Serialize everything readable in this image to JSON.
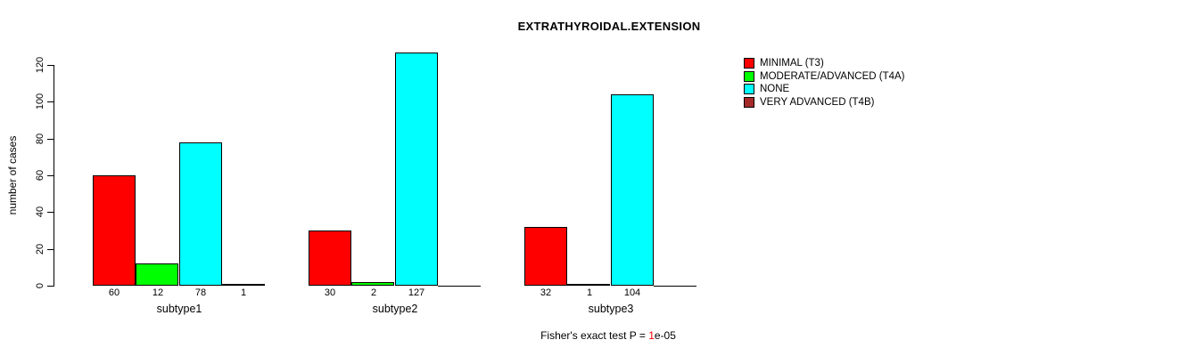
{
  "title": "EXTRATHYROIDAL.EXTENSION",
  "chart_data": {
    "type": "bar",
    "title": "EXTRATHYROIDAL.EXTENSION",
    "xlabel": "",
    "ylabel": "number of cases",
    "ylim": [
      0,
      120
    ],
    "yticks": [
      "0",
      "20",
      "40",
      "60",
      "80",
      "100",
      "120"
    ],
    "grid": false,
    "legend_position": "right",
    "categories": [
      "subtype1",
      "subtype2",
      "subtype3"
    ],
    "series": [
      {
        "name": "MINIMAL (T3)",
        "color": "#FF0000",
        "values": [
          60,
          30,
          32
        ]
      },
      {
        "name": "MODERATE/ADVANCED (T4A)",
        "color": "#00FF00",
        "values": [
          12,
          2,
          1
        ]
      },
      {
        "name": "NONE",
        "color": "#00FFFF",
        "values": [
          78,
          127,
          104
        ]
      },
      {
        "name": "VERY ADVANCED (T4B)",
        "color": "#A52A2A",
        "values": [
          1,
          0,
          0
        ]
      }
    ],
    "bar_value_labels": [
      [
        "60",
        "12",
        "78",
        "1"
      ],
      [
        "30",
        "2",
        "127",
        ""
      ],
      [
        "32",
        "1",
        "104",
        ""
      ]
    ]
  },
  "legend": {
    "items": [
      {
        "label": "MINIMAL (T3)",
        "color": "#FF0000"
      },
      {
        "label": "MODERATE/ADVANCED (T4A)",
        "color": "#00FF00"
      },
      {
        "label": "NONE",
        "color": "#00FFFF"
      },
      {
        "label": "VERY ADVANCED (T4B)",
        "color": "#A52A2A"
      }
    ]
  },
  "caption": {
    "prefix": "Fisher's exact test P = ",
    "value": "1",
    "suffix": "e-05",
    "value_color": "#FF0000"
  }
}
